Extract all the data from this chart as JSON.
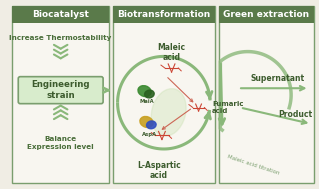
{
  "bg_color": "#f0ede4",
  "panel_bg": "#f8f6f0",
  "header_bg": "#5a7a4a",
  "border_color": "#7a9e6e",
  "dark_green": "#3d5c2e",
  "mid_green": "#7a9e6e",
  "light_green": "#c8ddb8",
  "arrow_green": "#8ab87a",
  "text_green": "#4a6e3a",
  "panel1_header": "Biocatalyst",
  "panel2_header": "Biotransformation",
  "panel3_header": "Green extraction",
  "p1_text1": "Increase Thermostability",
  "p1_box": "Engineering\nstrain",
  "p1_text2": "Balance\nExpression level",
  "p3_super": "Supernatant",
  "p3_product": "Product",
  "p3_maleic": "Maleic acid titration",
  "p2_maleic": "Maleic\nacid",
  "p2_fumaric": "Fumaric\nacid",
  "p2_aspartic": "L-Aspartic\nacid",
  "p2_maiA": "MaiA",
  "p2_aspA": "AspA",
  "figsize": [
    3.19,
    1.89
  ],
  "dpi": 100
}
